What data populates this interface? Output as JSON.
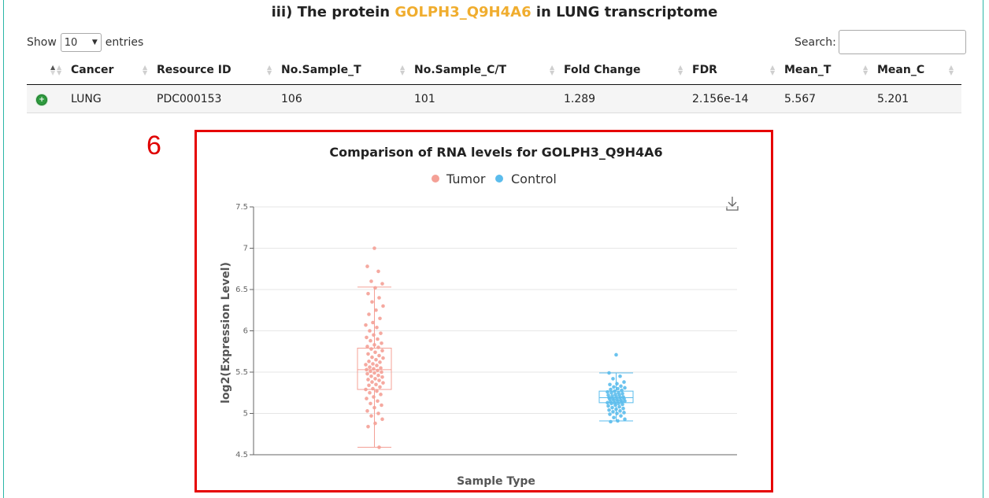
{
  "header": {
    "title_prefix": "iii) The protein ",
    "protein": "GOLPH3_Q9H4A6",
    "title_suffix": " in LUNG transcriptome",
    "accent_color": "#f0ad2e"
  },
  "table_controls": {
    "show_label": "Show",
    "entries_value": "10",
    "entries_label": "entries",
    "search_label": "Search:",
    "search_value": ""
  },
  "table": {
    "columns": [
      "Cancer",
      "Resource ID",
      "No.Sample_T",
      "No.Sample_C/T",
      "Fold Change",
      "FDR",
      "Mean_T",
      "Mean_C"
    ],
    "rows": [
      [
        "LUNG",
        "PDC000153",
        "106",
        "101",
        "1.289",
        "2.156e-14",
        "5.567",
        "5.201"
      ]
    ]
  },
  "annotation": {
    "panel_number": "6",
    "highlight_color": "#e60000"
  },
  "chart_data": {
    "type": "box",
    "title": "Comparison of RNA levels for GOLPH3_Q9H4A6",
    "xlabel": "Sample Type",
    "ylabel": "log2(Expression Level)",
    "ylim": [
      4.5,
      7.5
    ],
    "yticks": [
      "4.5",
      "5",
      "5.5",
      "6",
      "6.5",
      "7",
      "7.5"
    ],
    "grid": true,
    "legend_position": "top-center",
    "toolbox_icon": "download-icon",
    "series": [
      {
        "name": "Tumor",
        "color": "#f4a096",
        "box": {
          "min": 4.59,
          "q1": 5.29,
          "median": 5.53,
          "q3": 5.79,
          "max": 6.53
        },
        "points": [
          7.0,
          6.78,
          6.72,
          6.6,
          6.57,
          6.52,
          6.45,
          6.4,
          6.35,
          6.3,
          6.25,
          6.2,
          6.15,
          6.1,
          6.07,
          6.04,
          6.0,
          5.97,
          5.95,
          5.92,
          5.9,
          5.88,
          5.85,
          5.83,
          5.81,
          5.8,
          5.78,
          5.76,
          5.74,
          5.72,
          5.7,
          5.68,
          5.67,
          5.65,
          5.63,
          5.62,
          5.6,
          5.59,
          5.58,
          5.56,
          5.55,
          5.54,
          5.53,
          5.52,
          5.51,
          5.5,
          5.49,
          5.48,
          5.46,
          5.45,
          5.44,
          5.42,
          5.41,
          5.4,
          5.38,
          5.37,
          5.35,
          5.34,
          5.32,
          5.3,
          5.29,
          5.27,
          5.25,
          5.23,
          5.2,
          5.18,
          5.15,
          5.12,
          5.1,
          5.07,
          5.03,
          5.0,
          4.97,
          4.93,
          4.88,
          4.84,
          4.59
        ]
      },
      {
        "name": "Control",
        "color": "#5bbcec",
        "box": {
          "min": 4.91,
          "q1": 5.13,
          "median": 5.19,
          "q3": 5.27,
          "max": 5.49
        },
        "points": [
          5.71,
          5.49,
          5.45,
          5.42,
          5.38,
          5.36,
          5.35,
          5.33,
          5.32,
          5.31,
          5.3,
          5.29,
          5.28,
          5.27,
          5.26,
          5.25,
          5.25,
          5.24,
          5.23,
          5.22,
          5.22,
          5.21,
          5.2,
          5.2,
          5.19,
          5.19,
          5.18,
          5.18,
          5.17,
          5.17,
          5.16,
          5.16,
          5.15,
          5.15,
          5.14,
          5.14,
          5.13,
          5.13,
          5.12,
          5.12,
          5.11,
          5.1,
          5.09,
          5.08,
          5.07,
          5.06,
          5.05,
          5.04,
          5.03,
          5.02,
          5.01,
          5.0,
          4.99,
          4.97,
          4.95,
          4.93,
          4.91,
          4.9
        ]
      }
    ]
  }
}
